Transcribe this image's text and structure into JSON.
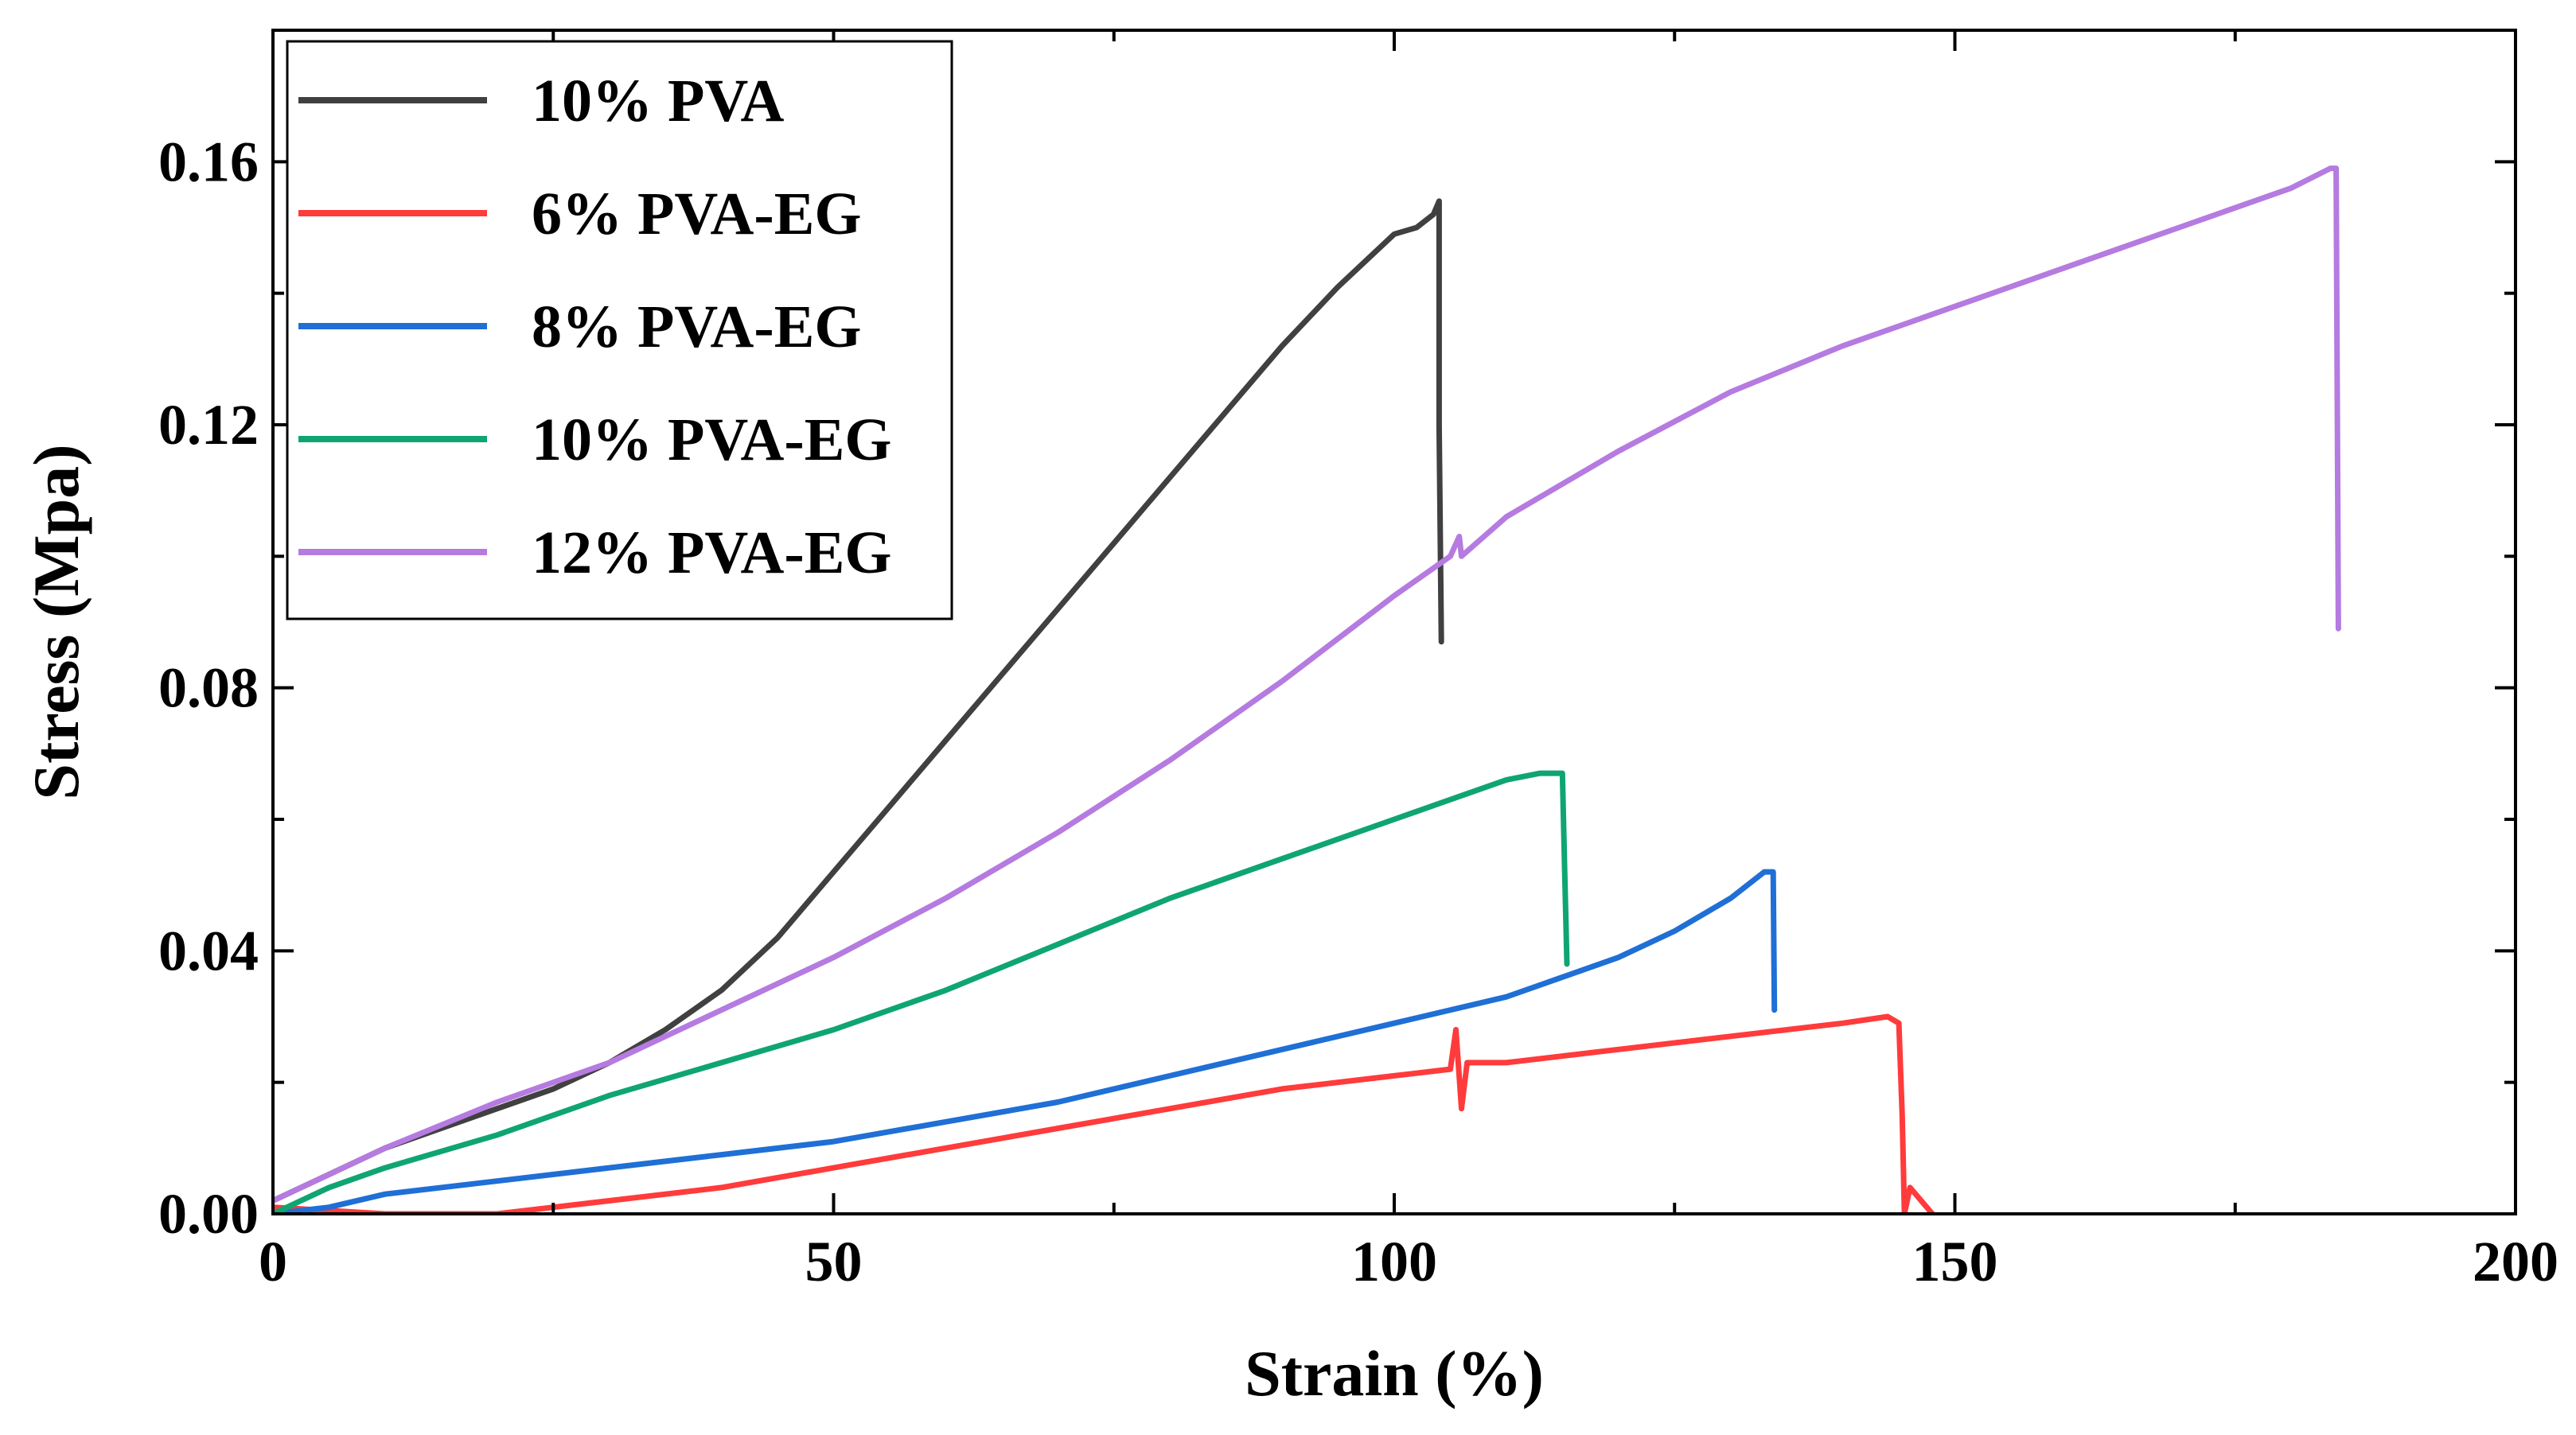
{
  "chart_data": {
    "type": "line",
    "title": "",
    "xlabel": "Strain (%)",
    "ylabel": "Stress (Mpa)",
    "xlim": [
      0,
      200
    ],
    "ylim": [
      0,
      0.18
    ],
    "xticks": [
      0,
      50,
      100,
      150,
      200
    ],
    "xtick_labels": [
      "0",
      "50",
      "100",
      "150",
      "200"
    ],
    "yticks": [
      0.0,
      0.04,
      0.08,
      0.12,
      0.16
    ],
    "ytick_labels": [
      "0.00",
      "0.04",
      "0.08",
      "0.12",
      "0.16"
    ],
    "grid": false,
    "legend_position": "top-left",
    "series": [
      {
        "name": "10% PVA",
        "color": "#404040",
        "x": [
          0,
          5,
          10,
          15,
          20,
          25,
          30,
          35,
          40,
          45,
          50,
          55,
          60,
          65,
          70,
          75,
          80,
          85,
          90,
          95,
          100,
          102,
          103.5,
          104,
          104,
          104.2
        ],
        "y": [
          0.002,
          0.006,
          0.01,
          0.013,
          0.016,
          0.019,
          0.023,
          0.028,
          0.034,
          0.042,
          0.052,
          0.062,
          0.072,
          0.082,
          0.092,
          0.102,
          0.112,
          0.122,
          0.132,
          0.141,
          0.149,
          0.15,
          0.152,
          0.154,
          0.12,
          0.087
        ]
      },
      {
        "name": "6% PVA-EG",
        "color": "#ff3b3b",
        "x": [
          0,
          5,
          10,
          15,
          20,
          25,
          30,
          40,
          50,
          60,
          70,
          80,
          90,
          100,
          105,
          105.5,
          106,
          106.5,
          110,
          120,
          130,
          140,
          144,
          145,
          145.3,
          145.5,
          146,
          147,
          148
        ],
        "y": [
          0.001,
          0.0005,
          0.0,
          0.0,
          0.0,
          0.001,
          0.002,
          0.004,
          0.007,
          0.01,
          0.013,
          0.016,
          0.019,
          0.021,
          0.022,
          0.028,
          0.016,
          0.023,
          0.023,
          0.025,
          0.027,
          0.029,
          0.03,
          0.029,
          0.015,
          0.0,
          0.004,
          0.002,
          0.0
        ]
      },
      {
        "name": "8% PVA-EG",
        "color": "#1f6fd6",
        "x": [
          0,
          5,
          10,
          20,
          30,
          40,
          50,
          60,
          70,
          80,
          90,
          100,
          110,
          120,
          125,
          130,
          133,
          133.8,
          133.9
        ],
        "y": [
          0.0,
          0.001,
          0.003,
          0.005,
          0.007,
          0.009,
          0.011,
          0.014,
          0.017,
          0.021,
          0.025,
          0.029,
          0.033,
          0.039,
          0.043,
          0.048,
          0.052,
          0.052,
          0.031
        ]
      },
      {
        "name": "10% PVA-EG",
        "color": "#0fa572",
        "x": [
          0,
          5,
          10,
          20,
          30,
          40,
          50,
          60,
          70,
          80,
          90,
          100,
          105,
          110,
          113,
          115,
          115.2,
          115.4
        ],
        "y": [
          0.0,
          0.004,
          0.007,
          0.012,
          0.018,
          0.023,
          0.028,
          0.034,
          0.041,
          0.048,
          0.054,
          0.06,
          0.063,
          0.066,
          0.067,
          0.067,
          0.052,
          0.038
        ]
      },
      {
        "name": "12% PVA-EG",
        "color": "#b57be0",
        "x": [
          0,
          10,
          20,
          30,
          40,
          50,
          60,
          70,
          80,
          90,
          100,
          105,
          105.8,
          106,
          110,
          120,
          130,
          140,
          150,
          160,
          170,
          180,
          183.5,
          184,
          184.2
        ],
        "y": [
          0.002,
          0.01,
          0.017,
          0.023,
          0.031,
          0.039,
          0.048,
          0.058,
          0.069,
          0.081,
          0.094,
          0.1,
          0.103,
          0.1,
          0.106,
          0.116,
          0.125,
          0.132,
          0.138,
          0.144,
          0.15,
          0.156,
          0.159,
          0.159,
          0.089
        ]
      }
    ]
  }
}
